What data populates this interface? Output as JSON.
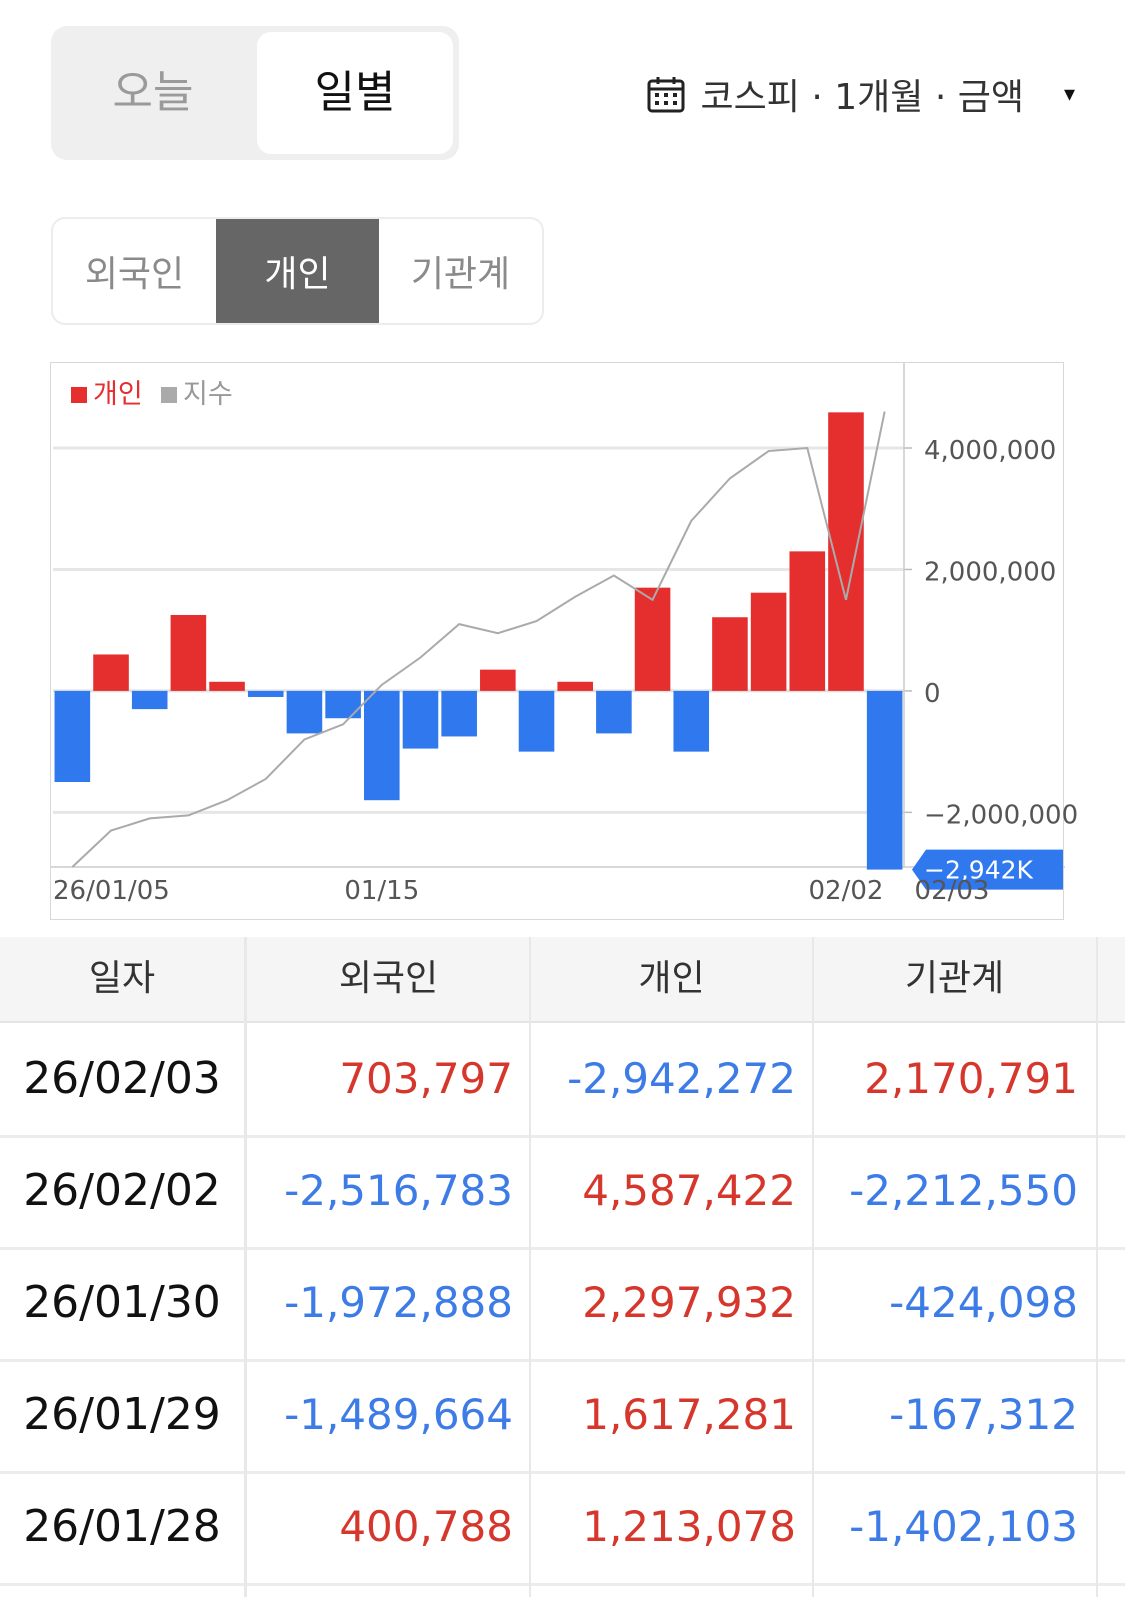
{
  "period_toggle": {
    "today": "오늘",
    "daily": "일별",
    "selected": "일별"
  },
  "filter": {
    "label": "코스피 · 1개월 · 금액",
    "icon": "calendar-icon",
    "caret": "▾"
  },
  "investor_tabs": {
    "items": [
      "외국인",
      "개인",
      "기관계"
    ],
    "selected": "개인"
  },
  "chart_data": {
    "type": "bar",
    "legend": [
      {
        "name": "개인",
        "color": "#e52f2f"
      },
      {
        "name": "지수",
        "color": "#aaaaaa"
      }
    ],
    "x_tick_labels": [
      "26/01/05",
      "01/15",
      "02/02",
      "02/03"
    ],
    "y_tick_labels": [
      "4,000,000",
      "2,000,000",
      "0",
      "−2,000,000"
    ],
    "ylim": [
      -2900000,
      5400000
    ],
    "last_value_label": "−2,942K",
    "positive_color": "#e52f2f",
    "negative_color": "#2f78ee",
    "series": [
      {
        "name": "개인",
        "values": [
          -1500000,
          600000,
          -300000,
          1250000,
          150000,
          -100000,
          -700000,
          -450000,
          -1800000,
          -950000,
          -750000,
          350000,
          -1000000,
          150000,
          -700000,
          1700000,
          -1000000,
          1213078,
          1617281,
          2297932,
          4587422,
          -2942272
        ]
      },
      {
        "name": "지수",
        "values": [
          -2900000,
          -2300000,
          -2100000,
          -2050000,
          -1800000,
          -1450000,
          -800000,
          -550000,
          100000,
          550000,
          1100000,
          950000,
          1150000,
          1550000,
          1900000,
          1500000,
          2800000,
          3500000,
          3950000,
          4000000,
          1500000,
          4600000
        ]
      }
    ]
  },
  "table": {
    "headers": [
      "일자",
      "외국인",
      "개인",
      "기관계"
    ],
    "rows": [
      {
        "date": "26/02/03",
        "foreign": "703,797",
        "individual": "-2,942,272",
        "institution": "2,170,791"
      },
      {
        "date": "26/02/02",
        "foreign": "-2,516,783",
        "individual": "4,587,422",
        "institution": "-2,212,550"
      },
      {
        "date": "26/01/30",
        "foreign": "-1,972,888",
        "individual": "2,297,932",
        "institution": "-424,098"
      },
      {
        "date": "26/01/29",
        "foreign": "-1,489,664",
        "individual": "1,617,281",
        "institution": "-167,312"
      },
      {
        "date": "26/01/28",
        "foreign": "400,788",
        "individual": "1,213,078",
        "institution": "-1,402,103"
      }
    ]
  }
}
